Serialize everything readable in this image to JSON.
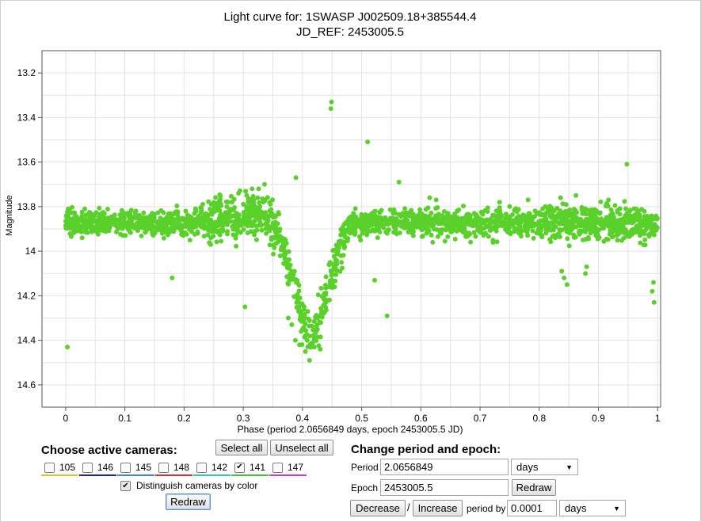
{
  "chart_data": {
    "type": "scatter",
    "title": "Light curve for: 1SWASP J002509.18+385544.4",
    "subtitle": "JD_REF: 2453005.5",
    "xlabel": "Phase (period 2.0656849 days, epoch 2453005.5 JD)",
    "ylabel": "Magnitude",
    "xlim": [
      -0.04,
      1.005
    ],
    "ylim": [
      13.1,
      14.7
    ],
    "y_inverted": true,
    "x_ticks": [
      "0",
      "0.1",
      "0.2",
      "0.3",
      "0.4",
      "0.5",
      "0.6",
      "0.7",
      "0.8",
      "0.9",
      "1"
    ],
    "x_tick_values": [
      0,
      0.1,
      0.2,
      0.3,
      0.4,
      0.5,
      0.6,
      0.7,
      0.8,
      0.9,
      1.0
    ],
    "y_ticks": [
      "13.2",
      "13.4",
      "13.6",
      "13.8",
      "14",
      "14.2",
      "14.4",
      "14.6"
    ],
    "y_tick_values": [
      13.2,
      13.4,
      13.6,
      13.8,
      14.0,
      14.2,
      14.4,
      14.6
    ],
    "grid": true,
    "marker_color": "#5ad12a",
    "baseline_profile": [
      [
        0.0,
        13.87
      ],
      [
        0.2,
        13.87
      ],
      [
        0.25,
        13.86
      ],
      [
        0.3,
        13.84
      ],
      [
        0.34,
        13.85
      ],
      [
        0.36,
        13.93
      ],
      [
        0.38,
        14.1
      ],
      [
        0.4,
        14.3
      ],
      [
        0.41,
        14.38
      ],
      [
        0.42,
        14.36
      ],
      [
        0.44,
        14.2
      ],
      [
        0.46,
        14.0
      ],
      [
        0.48,
        13.88
      ],
      [
        0.5,
        13.87
      ],
      [
        1.0,
        13.88
      ]
    ],
    "series": [
      {
        "values": [
          [
            0.003,
            14.43
          ],
          [
            0.389,
            13.67
          ],
          [
            0.449,
            13.33
          ],
          [
            0.448,
            13.36
          ],
          [
            0.51,
            13.51
          ],
          [
            0.563,
            13.69
          ],
          [
            0.948,
            13.61
          ],
          [
            0.18,
            14.12
          ],
          [
            0.303,
            14.25
          ],
          [
            0.543,
            14.29
          ],
          [
            0.522,
            14.13
          ],
          [
            0.993,
            14.14
          ],
          [
            0.991,
            14.18
          ],
          [
            0.994,
            14.23
          ],
          [
            0.412,
            14.49
          ],
          [
            0.405,
            14.45
          ],
          [
            0.42,
            14.43
          ],
          [
            0.388,
            14.4
          ],
          [
            0.395,
            14.42
          ],
          [
            0.43,
            14.44
          ],
          [
            0.376,
            14.3
          ],
          [
            0.382,
            14.33
          ],
          [
            0.398,
            14.36
          ],
          [
            0.408,
            14.4
          ],
          [
            0.425,
            14.3
          ],
          [
            0.862,
            13.75
          ],
          [
            0.917,
            13.77
          ],
          [
            0.836,
            13.76
          ],
          [
            0.88,
            14.07
          ],
          [
            0.878,
            14.1
          ],
          [
            0.781,
            13.77
          ],
          [
            0.626,
            13.77
          ],
          [
            0.615,
            13.76
          ],
          [
            0.315,
            13.72
          ],
          [
            0.326,
            13.72
          ],
          [
            0.336,
            13.7
          ],
          [
            0.292,
            13.74
          ],
          [
            0.304,
            13.73
          ],
          [
            0.842,
            14.12
          ],
          [
            0.847,
            14.15
          ],
          [
            0.838,
            14.09
          ],
          [
            0.733,
            13.78
          ],
          [
            0.62,
            13.96
          ],
          [
            0.245,
            13.97
          ],
          [
            0.21,
            13.95
          ]
        ]
      }
    ]
  },
  "cameras": {
    "heading": "Choose active cameras:",
    "select_all": "Select all",
    "unselect_all": "Unselect all",
    "items": [
      {
        "label": "105",
        "checked": "",
        "color": "#d4c628"
      },
      {
        "label": "146",
        "checked": "",
        "color": "#1f1fbf"
      },
      {
        "label": "145",
        "checked": "",
        "color": "#3f86d8"
      },
      {
        "label": "148",
        "checked": "",
        "color": "#d83030"
      },
      {
        "label": "142",
        "checked": "",
        "color": "#38c7a6"
      },
      {
        "label": "141",
        "checked": "✔",
        "color": "#3fc23a"
      },
      {
        "label": "147",
        "checked": "",
        "color": "#c93bc9"
      }
    ],
    "distinguish_label": "Distinguish cameras by color",
    "distinguish_checked": "✔",
    "redraw": "Redraw"
  },
  "period_panel": {
    "heading": "Change period and epoch:",
    "period_label": "Period",
    "period_value": "2.0656849",
    "period_unit": "days",
    "epoch_label": "Epoch",
    "epoch_value": "2453005.5",
    "redraw": "Redraw",
    "decrease": "Decrease",
    "separator": "/",
    "increase": "Increase",
    "period_by_label": "period by",
    "step_value": "0.0001",
    "step_unit": "days"
  },
  "icons": {
    "dropdown": "▼"
  }
}
